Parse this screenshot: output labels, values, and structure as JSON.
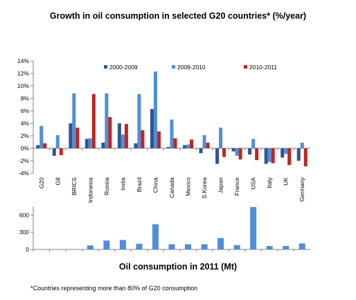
{
  "title": "Growth in oil consumption in selected G20 countries* (%/year)",
  "subtitle": "Oil consumption in 2011 (Mt)",
  "footnote": "*Countries representing more than 80% of G20 consumption",
  "colors": {
    "s1": "#2d5591",
    "s2": "#4f8fd6",
    "s3": "#c0261f",
    "axis": "#7f7f7f"
  },
  "chart_data": [
    {
      "type": "bar",
      "categories": [
        "G20",
        "G8",
        "BRICS",
        "Indonesia",
        "Russia",
        "India",
        "Brazil",
        "China",
        "Canada",
        "Mexico",
        "S.Korea",
        "Japan",
        "France",
        "USA",
        "Italy",
        "UK",
        "Germany"
      ],
      "series": [
        {
          "name": "2000-2009",
          "values": [
            0.5,
            -1.2,
            4.0,
            1.5,
            0.9,
            4.0,
            0.8,
            6.3,
            0.2,
            0.5,
            -0.8,
            -2.5,
            -0.5,
            -1.0,
            -2.5,
            -1.5,
            -2.0
          ]
        },
        {
          "name": "2009-2010",
          "values": [
            3.6,
            2.1,
            8.8,
            1.6,
            8.8,
            2.2,
            8.7,
            12.3,
            4.6,
            0.6,
            2.1,
            3.3,
            -1.2,
            1.5,
            -2.2,
            -0.9,
            0.9
          ]
        },
        {
          "name": "2010-2011",
          "values": [
            0.8,
            -1.1,
            3.3,
            8.7,
            5.0,
            3.9,
            2.9,
            2.7,
            1.6,
            1.4,
            0.9,
            -1.4,
            -1.8,
            -1.9,
            -2.4,
            -2.7,
            -2.9
          ]
        }
      ],
      "ylim": [
        -4,
        14
      ],
      "yticks": [
        "-4%",
        "-2%",
        "0%",
        "2%",
        "4%",
        "6%",
        "8%",
        "10%",
        "12%",
        "14%"
      ],
      "ytick_values": [
        -4,
        -2,
        0,
        2,
        4,
        6,
        8,
        10,
        12,
        14
      ],
      "legend_position": "top",
      "grid": false
    },
    {
      "type": "bar",
      "categories": [
        "G20",
        "G8",
        "BRICS",
        "Indonesia",
        "Russia",
        "India",
        "Brazil",
        "China",
        "Canada",
        "Mexico",
        "S.Korea",
        "Japan",
        "France",
        "USA",
        "Italy",
        "UK",
        "Germany"
      ],
      "values": [
        null,
        null,
        null,
        70,
        155,
        165,
        100,
        440,
        90,
        90,
        90,
        200,
        75,
        740,
        60,
        60,
        105
      ],
      "title": "Oil consumption in 2011 (Mt)",
      "ylim": [
        0,
        750
      ],
      "yticks": [
        "0",
        "300",
        "600"
      ],
      "ytick_values": [
        0,
        300,
        600
      ],
      "grid": false
    }
  ]
}
